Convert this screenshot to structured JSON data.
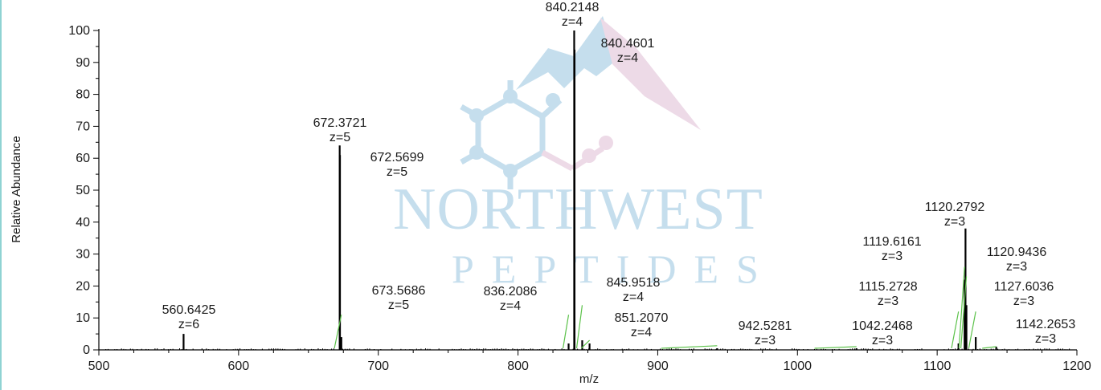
{
  "watermark": {
    "line1": "NORTHWEST",
    "line2": "PEPTIDES",
    "colors": {
      "blue": "#bcd9ea",
      "pink": "#ead4e3"
    }
  },
  "chart_data": {
    "type": "bar",
    "title": "",
    "xlabel": "m/z",
    "ylabel": "Relative Abundance",
    "xlim": [
      500,
      1200
    ],
    "ylim": [
      0,
      100
    ],
    "xticks": [
      500,
      600,
      700,
      800,
      900,
      1000,
      1100,
      1200
    ],
    "yticks": [
      0,
      10,
      20,
      30,
      40,
      50,
      60,
      70,
      80,
      90,
      100
    ],
    "grid": false,
    "peaks": [
      {
        "mz": 560.6425,
        "intensity": 5
      },
      {
        "mz": 672.3721,
        "intensity": 64
      },
      {
        "mz": 672.5699,
        "intensity": 61
      },
      {
        "mz": 673.5686,
        "intensity": 4
      },
      {
        "mz": 836.2086,
        "intensity": 2
      },
      {
        "mz": 840.2148,
        "intensity": 100
      },
      {
        "mz": 840.4601,
        "intensity": 94
      },
      {
        "mz": 845.9518,
        "intensity": 3
      },
      {
        "mz": 851.207,
        "intensity": 2
      },
      {
        "mz": 942.5281,
        "intensity": 0.5
      },
      {
        "mz": 1042.2468,
        "intensity": 0.5
      },
      {
        "mz": 1115.2728,
        "intensity": 2
      },
      {
        "mz": 1119.6161,
        "intensity": 22
      },
      {
        "mz": 1120.2792,
        "intensity": 38
      },
      {
        "mz": 1120.9436,
        "intensity": 14
      },
      {
        "mz": 1127.6036,
        "intensity": 4
      },
      {
        "mz": 1142.2653,
        "intensity": 1
      }
    ],
    "annotations": [
      {
        "mz_text": "560.6425",
        "z_text": "z=6"
      },
      {
        "mz_text": "672.3721",
        "z_text": "z=5"
      },
      {
        "mz_text": "672.5699",
        "z_text": "z=5"
      },
      {
        "mz_text": "673.5686",
        "z_text": "z=5"
      },
      {
        "mz_text": "836.2086",
        "z_text": "z=4"
      },
      {
        "mz_text": "840.2148",
        "z_text": "z=4"
      },
      {
        "mz_text": "840.4601",
        "z_text": "z=4"
      },
      {
        "mz_text": "845.9518",
        "z_text": "z=4"
      },
      {
        "mz_text": "851.2070",
        "z_text": "z=4"
      },
      {
        "mz_text": "942.5281",
        "z_text": "z=3"
      },
      {
        "mz_text": "1042.2468",
        "z_text": "z=3"
      },
      {
        "mz_text": "1119.6161",
        "z_text": "z=3"
      },
      {
        "mz_text": "1120.2792",
        "z_text": "z=3"
      },
      {
        "mz_text": "1120.9436",
        "z_text": "z=3"
      },
      {
        "mz_text": "1115.2728",
        "z_text": "z=3"
      },
      {
        "mz_text": "1127.6036",
        "z_text": "z=3"
      },
      {
        "mz_text": "1142.2653",
        "z_text": "z=3"
      }
    ]
  }
}
